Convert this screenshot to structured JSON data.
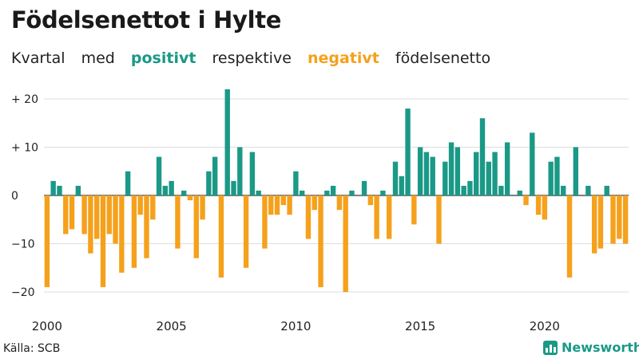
{
  "title": "Födelsenettot i Hylte",
  "subtitle": {
    "part1": "Kvartal",
    "part2": "med",
    "positive": "positivt",
    "part3": "respektive",
    "negative": "negativt",
    "part4": "födelsenetto"
  },
  "source": "Källa: SCB",
  "brand": "Newsworthy",
  "colors": {
    "positive": "#1a9987",
    "negative": "#f5a11c",
    "grid": "#dddddd",
    "axis": "#333333"
  },
  "chart_data": {
    "type": "bar",
    "x_start": "2000Q1",
    "period": "quarter",
    "xticks": [
      "2000",
      "2005",
      "2010",
      "2015",
      "2020"
    ],
    "yticks": [
      20,
      10,
      0,
      -10,
      -20
    ],
    "ytick_labels": [
      "+ 20",
      "+ 10",
      "0",
      "−10",
      "−20"
    ],
    "ylim": [
      -22,
      23
    ],
    "values": [
      -19,
      3,
      2,
      -8,
      -7,
      2,
      -8,
      -12,
      -9,
      -19,
      -8,
      -10,
      -16,
      5,
      -15,
      -4,
      -13,
      -5,
      8,
      2,
      3,
      -11,
      1,
      -1,
      -13,
      -5,
      5,
      8,
      -17,
      22,
      3,
      10,
      -15,
      9,
      1,
      -11,
      -4,
      -4,
      -2,
      -4,
      5,
      1,
      -9,
      -3,
      -19,
      1,
      2,
      -3,
      -20,
      1,
      0,
      3,
      -2,
      -9,
      1,
      -9,
      7,
      4,
      18,
      -6,
      10,
      9,
      8,
      -10,
      7,
      11,
      10,
      2,
      3,
      9,
      16,
      7,
      9,
      2,
      11,
      0,
      1,
      -2,
      13,
      -4,
      -5,
      7,
      8,
      2,
      -17,
      10,
      0,
      2,
      -12,
      -11,
      2,
      -10,
      -9,
      -10
    ]
  }
}
